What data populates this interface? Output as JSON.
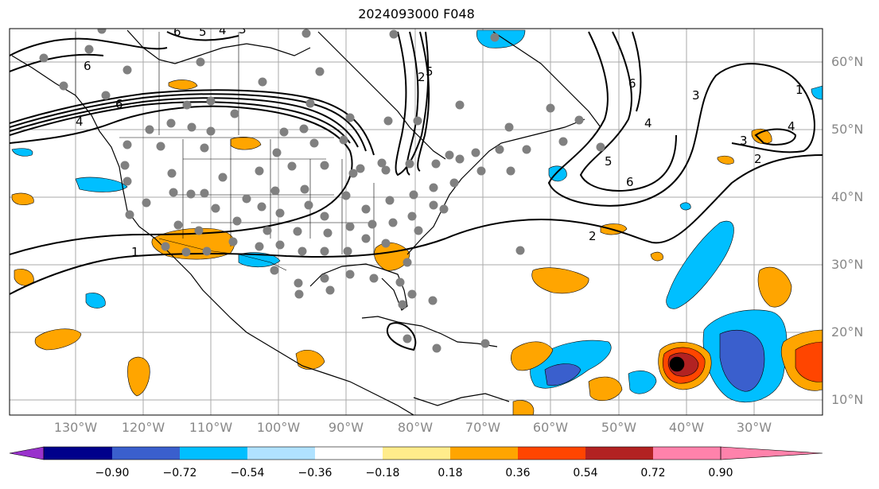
{
  "title": "2024093000 F048",
  "lat_labels": [
    "60°N",
    "50°N",
    "40°N",
    "30°N",
    "20°N",
    "10°N"
  ],
  "lon_labels": [
    "130°W",
    "120°W",
    "110°W",
    "100°W",
    "90°W",
    "80°W",
    "70°W",
    "60°W",
    "50°W",
    "40°W",
    "30°W"
  ],
  "contour_labels": [
    "6",
    "5",
    "4",
    "3",
    "6",
    "6",
    "4",
    "5",
    "6",
    "2",
    "1",
    "1",
    "2",
    "3",
    "4",
    "5",
    "6",
    "2",
    "3",
    "4"
  ],
  "colorbar": {
    "ticks": [
      "−0.90",
      "−0.72",
      "−0.54",
      "−0.36",
      "−0.18",
      "0.18",
      "0.36",
      "0.54",
      "0.72",
      "0.90"
    ],
    "colors": [
      "#9932cc",
      "#00008b",
      "#3a5fcd",
      "#00bfff",
      "#b0e2ff",
      "#ffffff",
      "#ffec8b",
      "#ffa500",
      "#ff4500",
      "#b22222",
      "#ff82ab"
    ]
  },
  "colors": {
    "contour": "#000000",
    "station_dot": "#808080",
    "grid": "#aaaaaa",
    "axis_label": "#888888"
  }
}
